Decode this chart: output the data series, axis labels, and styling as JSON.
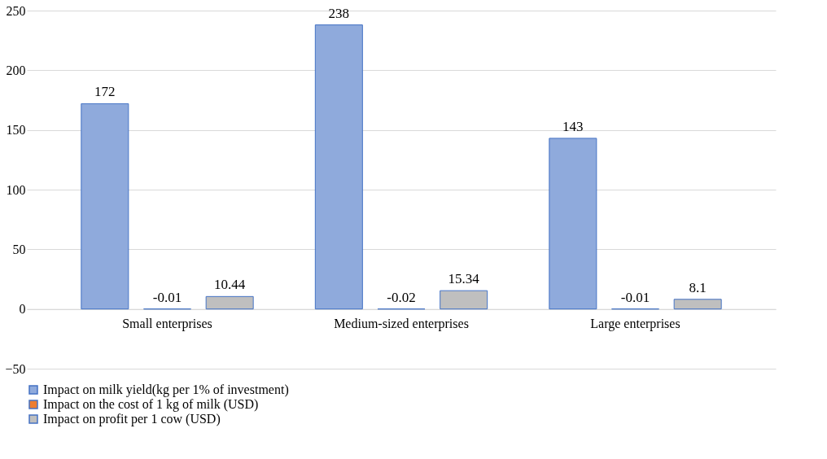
{
  "chart_data": {
    "type": "bar",
    "categories": [
      "Small enterprises",
      "Medium-sized enterprises",
      "Large enterprises"
    ],
    "series": [
      {
        "name": "Impact on milk yield(kg per 1% of investment)",
        "color": "#8faadc",
        "values": [
          172,
          238,
          143
        ]
      },
      {
        "name": "Impact on the cost of 1 kg of milk (USD)",
        "color": "#ed7d31",
        "values": [
          -0.01,
          -0.02,
          -0.01
        ]
      },
      {
        "name": "Impact on profit per 1 cow (USD)",
        "color": "#bfbfbf",
        "values": [
          10.44,
          15.34,
          8.1
        ]
      }
    ],
    "ylim": [
      -50,
      250
    ],
    "yticks": [
      -50,
      0,
      50,
      100,
      150,
      200,
      250
    ],
    "grid": "y",
    "legend": "bottom",
    "data_labels": true
  }
}
